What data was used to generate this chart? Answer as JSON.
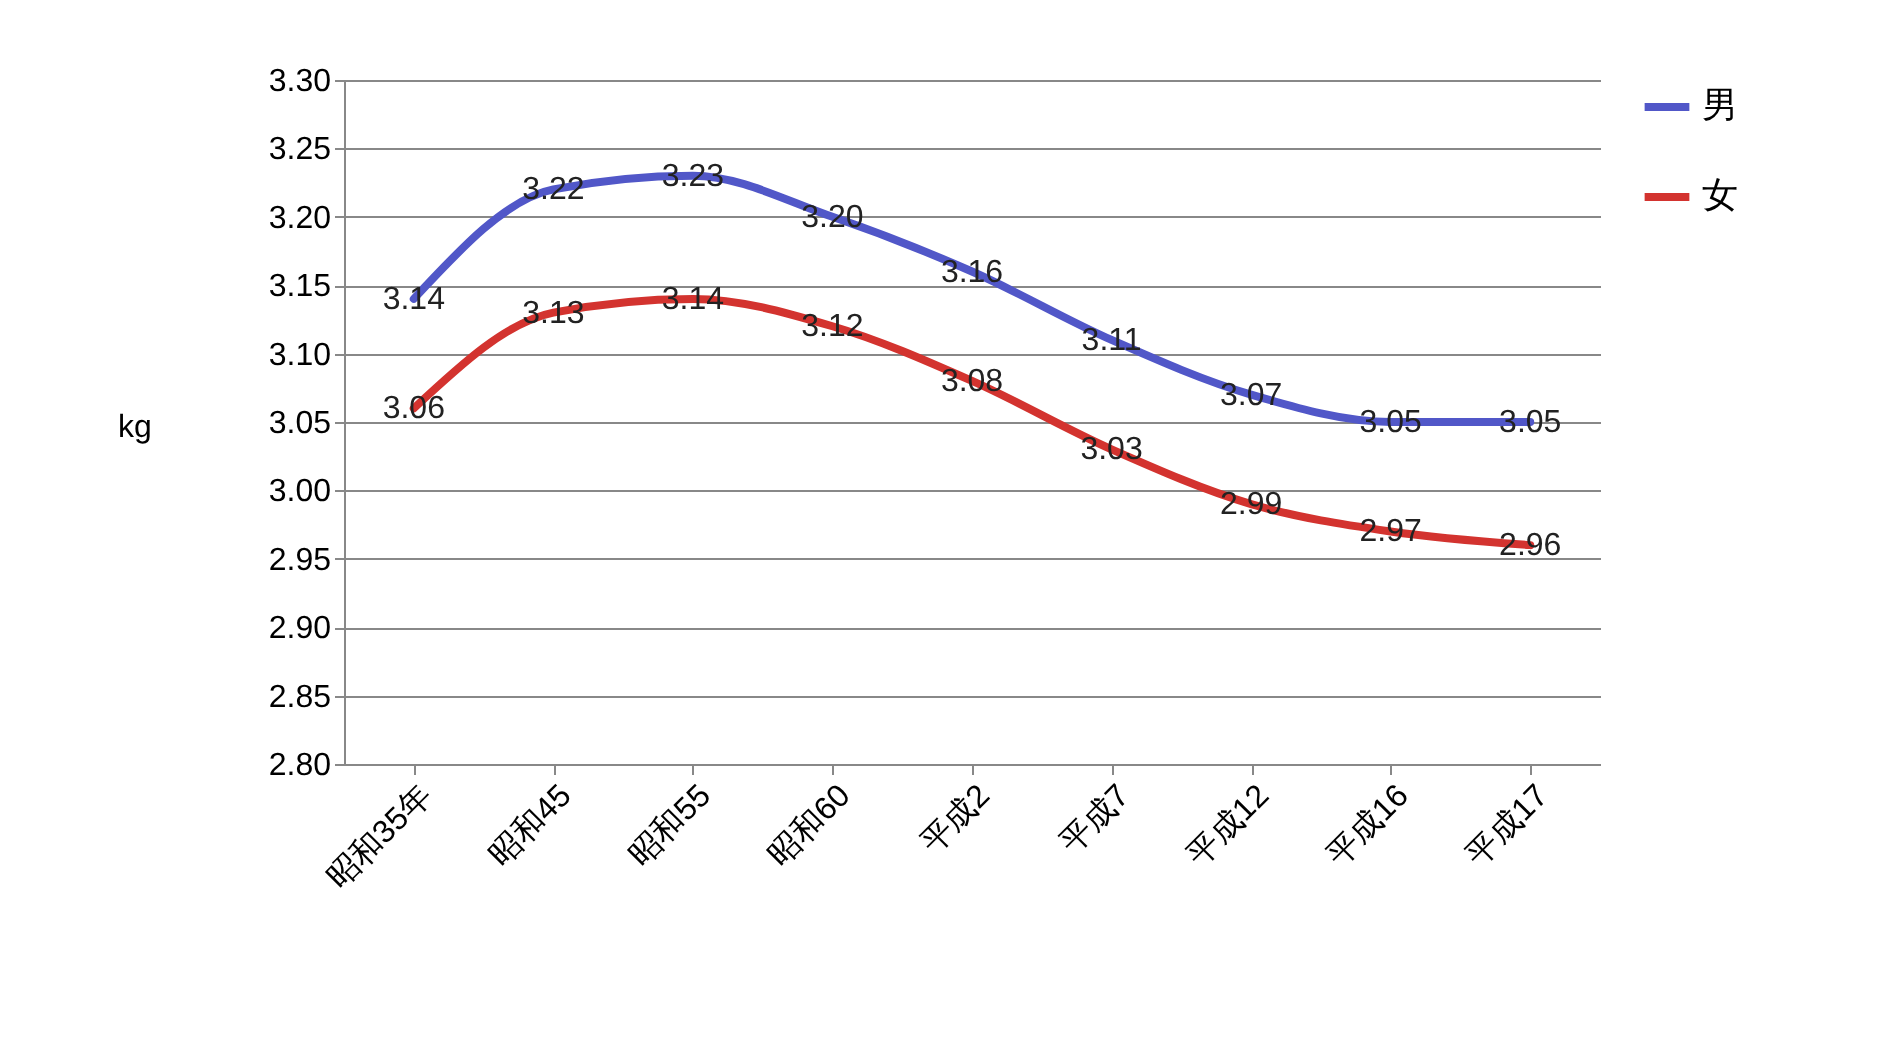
{
  "chart_data": {
    "type": "line",
    "ylabel": "kg",
    "categories": [
      "昭和35年",
      "昭和45",
      "昭和55",
      "昭和60",
      "平成2",
      "平成7",
      "平成12",
      "平成16",
      "平成17"
    ],
    "series": [
      {
        "name": "男",
        "color": "#5157c8",
        "values": [
          3.14,
          3.22,
          3.23,
          3.2,
          3.16,
          3.11,
          3.07,
          3.05,
          3.05
        ],
        "value_labels": [
          "3.14",
          "3.22",
          "3.23",
          "3.20",
          "3.16",
          "3.11",
          "3.07",
          "3.05",
          "3.05"
        ]
      },
      {
        "name": "女",
        "color": "#d3332f",
        "values": [
          3.06,
          3.13,
          3.14,
          3.12,
          3.08,
          3.03,
          2.99,
          2.97,
          2.96
        ],
        "value_labels": [
          "3.06",
          "3.13",
          "3.14",
          "3.12",
          "3.08",
          "3.03",
          "2.99",
          "2.97",
          "2.96"
        ]
      }
    ],
    "ylim": [
      2.8,
      3.3
    ],
    "yticks": [
      {
        "value": 2.8,
        "label": "2.80"
      },
      {
        "value": 2.85,
        "label": "2.85"
      },
      {
        "value": 2.9,
        "label": "2.90"
      },
      {
        "value": 2.95,
        "label": "2.95"
      },
      {
        "value": 3.0,
        "label": "3.00"
      },
      {
        "value": 3.05,
        "label": "3.05"
      },
      {
        "value": 3.1,
        "label": "3.10"
      },
      {
        "value": 3.15,
        "label": "3.15"
      },
      {
        "value": 3.2,
        "label": "3.20"
      },
      {
        "value": 3.25,
        "label": "3.25"
      },
      {
        "value": 3.3,
        "label": "3.30"
      }
    ],
    "grid": "y",
    "legend": "right",
    "marker": "none",
    "line_style": "solid"
  }
}
